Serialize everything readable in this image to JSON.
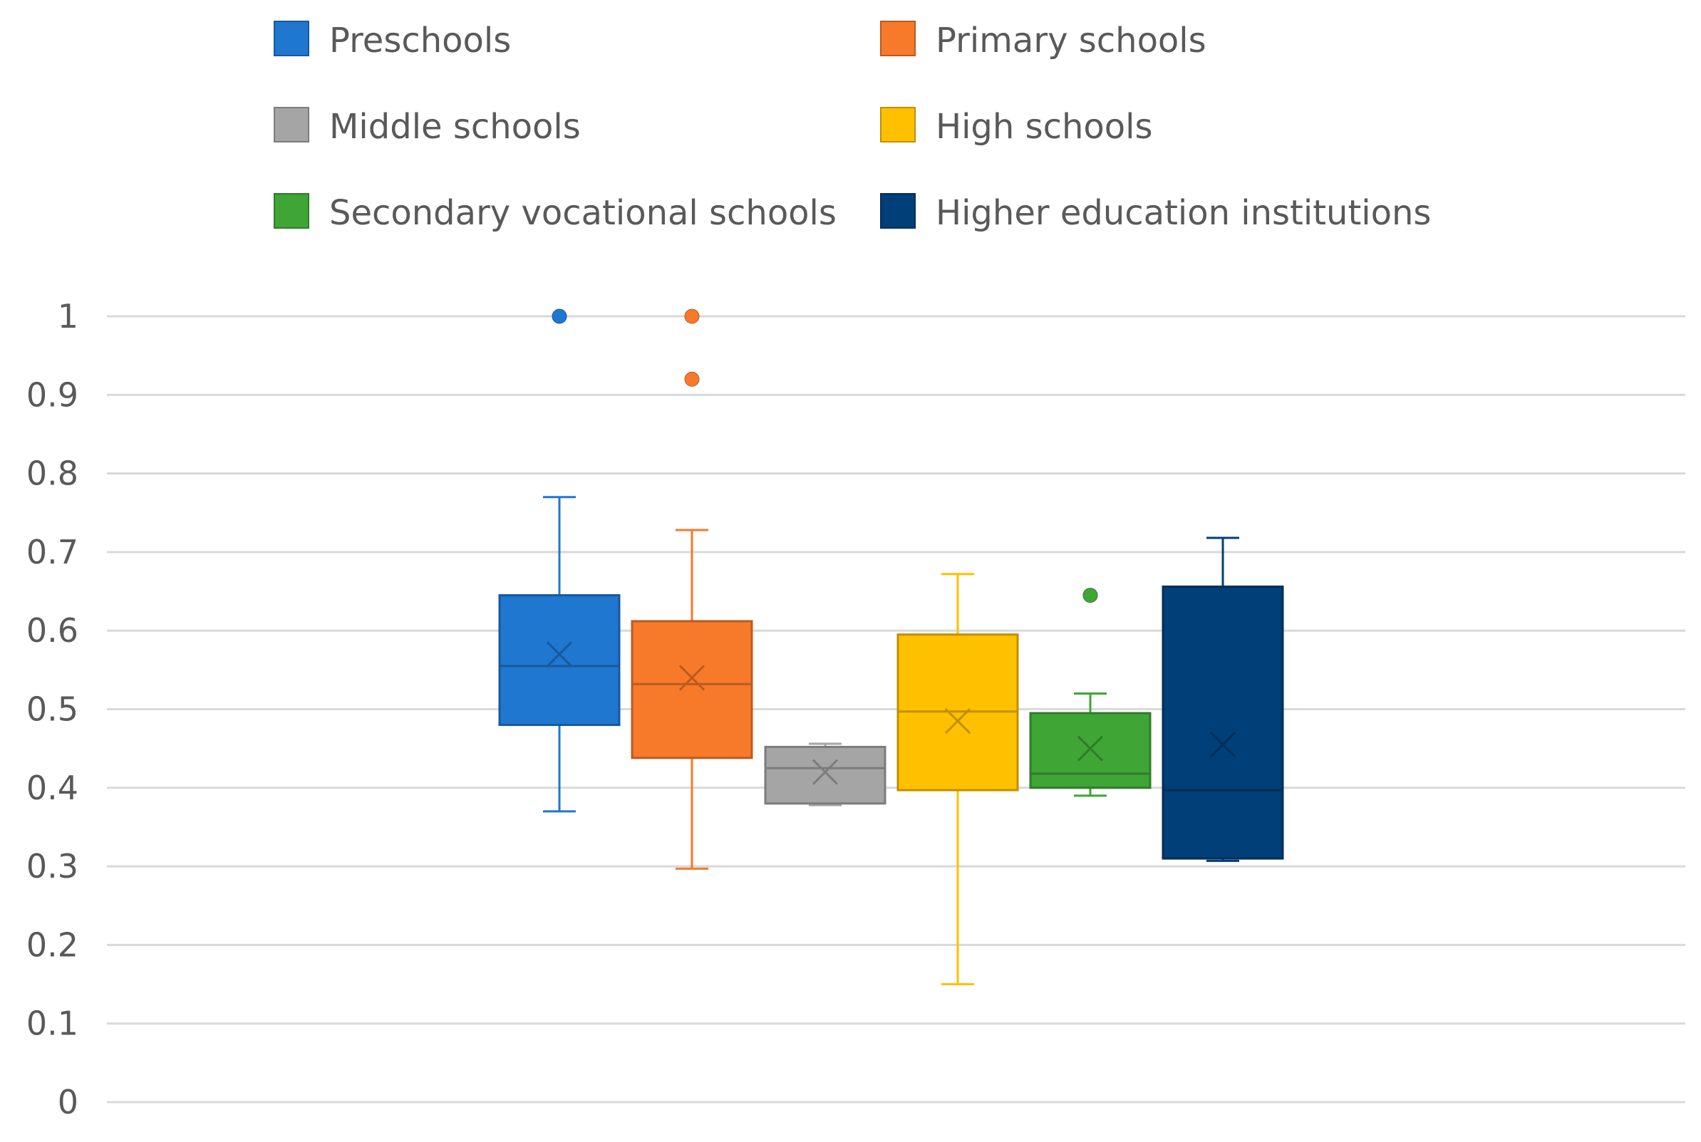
{
  "chart_data": {
    "type": "box",
    "title": "",
    "xlabel": "",
    "ylabel": "",
    "ylim": [
      0,
      1
    ],
    "yticks": [
      "0",
      "0.1",
      "0.2",
      "0.3",
      "0.4",
      "0.5",
      "0.6",
      "0.7",
      "0.8",
      "0.9",
      "1"
    ],
    "grid": true,
    "legend_position": "top",
    "series": [
      {
        "name": "Preschools",
        "color": "#1f77d0",
        "min": 0.37,
        "q1": 0.48,
        "median": 0.555,
        "q3": 0.645,
        "max": 0.77,
        "mean": 0.57,
        "outliers": [
          1.0
        ]
      },
      {
        "name": "Primary schools",
        "color": "#f7792a",
        "min": 0.297,
        "q1": 0.438,
        "median": 0.532,
        "q3": 0.612,
        "max": 0.728,
        "mean": 0.54,
        "outliers": [
          1.0,
          0.92
        ]
      },
      {
        "name": "Middle schools",
        "color": "#a5a5a5",
        "min": 0.378,
        "q1": 0.38,
        "median": 0.425,
        "q3": 0.452,
        "max": 0.456,
        "mean": 0.42,
        "outliers": []
      },
      {
        "name": "High schools",
        "color": "#ffc000",
        "min": 0.15,
        "q1": 0.397,
        "median": 0.497,
        "q3": 0.595,
        "max": 0.672,
        "mean": 0.485,
        "outliers": []
      },
      {
        "name": "Secondary vocational schools",
        "color": "#3fa535",
        "min": 0.39,
        "q1": 0.4,
        "median": 0.418,
        "q3": 0.495,
        "max": 0.52,
        "mean": 0.45,
        "outliers": [
          0.645
        ]
      },
      {
        "name": "Higher education institutions",
        "color": "#003f78",
        "min": 0.307,
        "q1": 0.31,
        "median": 0.397,
        "q3": 0.656,
        "max": 0.718,
        "mean": 0.455,
        "outliers": []
      }
    ]
  },
  "colors": {
    "grid": "#d9d9d9",
    "tick_text": "#595959",
    "legend_text": "#595959"
  }
}
